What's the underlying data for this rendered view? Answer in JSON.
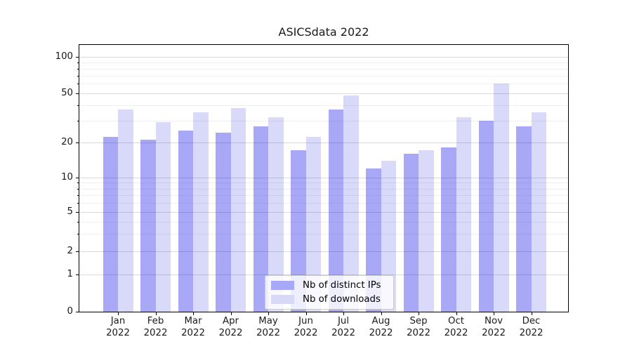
{
  "chart_data": {
    "type": "bar",
    "title": "ASICSdata 2022",
    "categories": [
      "Jan",
      "Feb",
      "Mar",
      "Apr",
      "May",
      "Jun",
      "Jul",
      "Aug",
      "Sep",
      "Oct",
      "Nov",
      "Dec"
    ],
    "category_year": "2022",
    "series": [
      {
        "name": "Nb of distinct IPs",
        "solid_color": "#a8a8f8",
        "fill_rgba": "rgba(0,0,230,0.34)",
        "values": [
          22,
          21,
          25,
          24,
          27,
          17,
          37,
          12,
          16,
          18,
          30,
          27
        ]
      },
      {
        "name": "Nb of downloads",
        "solid_color": "#d8d8f7",
        "fill_rgba": "rgba(0,0,220,0.15)",
        "values": [
          37,
          29,
          35,
          38,
          32,
          22,
          48,
          14,
          17,
          32,
          60,
          35
        ]
      }
    ],
    "y_axis": {
      "scale": "asinh",
      "major_ticks": [
        0,
        1,
        2,
        5,
        10,
        20,
        50,
        100
      ],
      "minor_ticks": [
        3,
        4,
        6,
        7,
        8,
        9,
        30,
        40,
        60,
        70,
        80,
        90
      ],
      "ylim": [
        0,
        127
      ]
    },
    "xlabel": "",
    "ylabel": "",
    "grid": true,
    "legend": {
      "position": "lower center",
      "entries": [
        "Nb of distinct IPs",
        "Nb of downloads"
      ]
    }
  },
  "colors": {
    "grid_major": "#d9d9d9",
    "grid_minor": "#f0f0f0",
    "axis": "#000000",
    "text": "#1a1a1a",
    "legend_border": "#cccccc",
    "legend_bg": "rgba(255,255,255,0.8)"
  }
}
